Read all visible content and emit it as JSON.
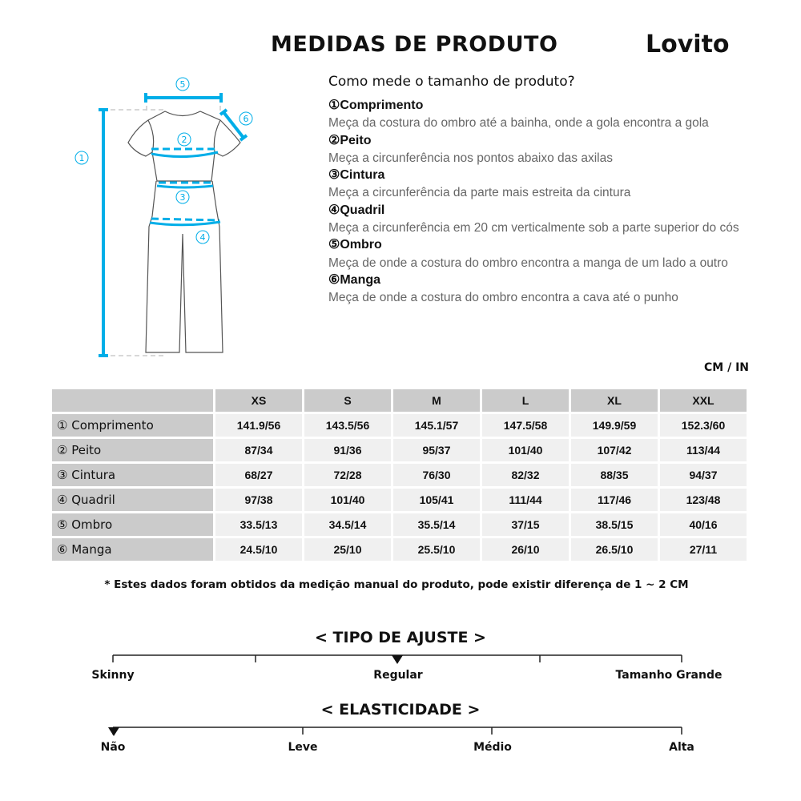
{
  "header": {
    "title": "MEDIDAS DE PRODUTO",
    "brand": "Lovito"
  },
  "guide": {
    "question": "Como mede o tamanho de produto?",
    "items": [
      {
        "num": "①",
        "name": "Comprimento",
        "desc": "Meça da costura do ombro até a bainha, onde a gola encontra a gola"
      },
      {
        "num": "②",
        "name": "Peito",
        "desc": "Meça a circunferência nos pontos abaixo das axilas"
      },
      {
        "num": "③",
        "name": "Cintura",
        "desc": "Meça a circunferência da parte mais estreita da cintura"
      },
      {
        "num": "④",
        "name": "Quadril",
        "desc": "Meça a circunferência em 20 cm verticalmente sob a parte superior do cós"
      },
      {
        "num": "⑤",
        "name": "Ombro",
        "desc": "Meça de onde a costura do ombro encontra a manga de um lado a outro"
      },
      {
        "num": "⑥",
        "name": "Manga",
        "desc": "Meça de onde a costura do ombro encontra a cava até o punho"
      }
    ]
  },
  "diagram": {
    "labels": [
      "①",
      "②",
      "③",
      "④",
      "⑤",
      "⑥"
    ],
    "accent": "#00aee8"
  },
  "table": {
    "units": "CM / IN",
    "sizes": [
      "XS",
      "S",
      "M",
      "L",
      "XL",
      "XXL"
    ],
    "rows": [
      {
        "label": "① Comprimento",
        "values": [
          "141.9/56",
          "143.5/56",
          "145.1/57",
          "147.5/58",
          "149.9/59",
          "152.3/60"
        ]
      },
      {
        "label": "② Peito",
        "values": [
          "87/34",
          "91/36",
          "95/37",
          "101/40",
          "107/42",
          "113/44"
        ]
      },
      {
        "label": "③ Cintura",
        "values": [
          "68/27",
          "72/28",
          "76/30",
          "82/32",
          "88/35",
          "94/37"
        ]
      },
      {
        "label": "④ Quadril",
        "values": [
          "97/38",
          "101/40",
          "105/41",
          "111/44",
          "117/46",
          "123/48"
        ]
      },
      {
        "label": "⑤ Ombro",
        "values": [
          "33.5/13",
          "34.5/14",
          "35.5/14",
          "37/15",
          "38.5/15",
          "40/16"
        ]
      },
      {
        "label": "⑥ Manga",
        "values": [
          "24.5/10",
          "25/10",
          "25.5/10",
          "26/10",
          "26.5/10",
          "27/11"
        ]
      }
    ]
  },
  "note": "* Estes dados foram obtidos da medição manual do produto, pode existir diferença de 1 ~ 2 CM",
  "fit": {
    "title": "< TIPO DE AJUSTE >",
    "labels": [
      "Skinny",
      "Regular",
      "Tamanho Grande"
    ],
    "selected": "Regular"
  },
  "elasticity": {
    "title": "< ELASTICIDADE >",
    "labels": [
      "Não",
      "Leve",
      "Médio",
      "Alta"
    ],
    "selected": "Não"
  }
}
